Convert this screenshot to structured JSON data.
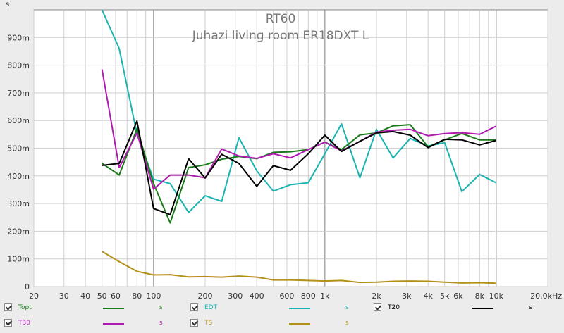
{
  "chart_data": {
    "type": "line",
    "title": "RT60",
    "subtitle": "Juhazi living room ER18DXT L",
    "ylabel": "s",
    "xlabel": "",
    "x_scale": "log",
    "xlim": [
      20,
      20000
    ],
    "ylim": [
      0,
      1.0
    ],
    "grid": true,
    "x_ticks": [
      {
        "v": 20,
        "label": "20"
      },
      {
        "v": 30,
        "label": "30"
      },
      {
        "v": 40,
        "label": "40"
      },
      {
        "v": 50,
        "label": "50"
      },
      {
        "v": 60,
        "label": "60"
      },
      {
        "v": 80,
        "label": "80"
      },
      {
        "v": 100,
        "label": "100"
      },
      {
        "v": 200,
        "label": "200"
      },
      {
        "v": 300,
        "label": "300"
      },
      {
        "v": 400,
        "label": "400"
      },
      {
        "v": 600,
        "label": "600"
      },
      {
        "v": 800,
        "label": "800"
      },
      {
        "v": 1000,
        "label": "1k"
      },
      {
        "v": 2000,
        "label": "2k"
      },
      {
        "v": 3000,
        "label": "3k"
      },
      {
        "v": 4000,
        "label": "4k"
      },
      {
        "v": 5000,
        "label": "5k"
      },
      {
        "v": 6000,
        "label": "6k"
      },
      {
        "v": 8000,
        "label": "8k"
      },
      {
        "v": 10000,
        "label": "10k"
      },
      {
        "v": 20000,
        "label": "20,0kHz"
      }
    ],
    "y_ticks": [
      {
        "v": 0,
        "label": "0"
      },
      {
        "v": 0.1,
        "label": "100m"
      },
      {
        "v": 0.2,
        "label": "200m"
      },
      {
        "v": 0.3,
        "label": "300m"
      },
      {
        "v": 0.4,
        "label": "400m"
      },
      {
        "v": 0.5,
        "label": "500m"
      },
      {
        "v": 0.6,
        "label": "600m"
      },
      {
        "v": 0.7,
        "label": "700m"
      },
      {
        "v": 0.8,
        "label": "800m"
      },
      {
        "v": 0.9,
        "label": "900m"
      }
    ],
    "x": [
      50,
      63,
      80,
      100,
      125,
      160,
      200,
      250,
      315,
      400,
      500,
      630,
      800,
      1000,
      1250,
      1600,
      2000,
      2500,
      3150,
      4000,
      5000,
      6300,
      8000,
      10000
    ],
    "series": [
      {
        "name": "Topt",
        "color": "#1a7a1a",
        "values": [
          0.445,
          0.403,
          0.57,
          0.372,
          0.23,
          0.43,
          0.44,
          0.46,
          0.47,
          0.462,
          0.485,
          0.487,
          0.495,
          0.522,
          0.495,
          0.548,
          0.555,
          0.581,
          0.585,
          0.505,
          0.53,
          0.553,
          0.53,
          0.53
        ]
      },
      {
        "name": "EDT",
        "color": "#1ab3b3",
        "values": [
          1.0,
          0.86,
          0.55,
          0.388,
          0.372,
          0.268,
          0.328,
          0.308,
          0.538,
          0.418,
          0.345,
          0.368,
          0.375,
          0.48,
          0.588,
          0.393,
          0.568,
          0.465,
          0.535,
          0.508,
          0.52,
          0.343,
          0.405,
          0.375
        ]
      },
      {
        "name": "T20",
        "color": "#000000",
        "values": [
          0.438,
          0.445,
          0.598,
          0.282,
          0.26,
          0.462,
          0.392,
          0.478,
          0.445,
          0.362,
          0.437,
          0.42,
          0.48,
          0.547,
          0.488,
          0.525,
          0.555,
          0.56,
          0.547,
          0.502,
          0.532,
          0.53,
          0.512,
          0.528
        ]
      },
      {
        "name": "T30",
        "color": "#b01ab0",
        "values": [
          0.785,
          0.43,
          0.555,
          0.352,
          0.403,
          0.403,
          0.393,
          0.497,
          0.472,
          0.463,
          0.48,
          0.465,
          0.495,
          0.522,
          0.49,
          0.525,
          0.558,
          0.565,
          0.568,
          0.545,
          0.553,
          0.556,
          0.55,
          0.58
        ]
      },
      {
        "name": "TS",
        "color": "#b39119",
        "values": [
          0.127,
          0.09,
          0.055,
          0.042,
          0.043,
          0.035,
          0.036,
          0.034,
          0.038,
          0.034,
          0.024,
          0.024,
          0.022,
          0.02,
          0.022,
          0.015,
          0.016,
          0.019,
          0.02,
          0.019,
          0.016,
          0.013,
          0.014,
          0.012
        ]
      }
    ]
  },
  "legend": {
    "items": [
      {
        "name": "Topt",
        "color": "#1a7a1a",
        "unit": "s",
        "text_color": "#1a7a1a"
      },
      {
        "name": "EDT",
        "color": "#1ab3b3",
        "unit": "s",
        "text_color": "#1ab3b3"
      },
      {
        "name": "T20",
        "color": "#000000",
        "unit": "s",
        "text_color": "#000000"
      },
      {
        "name": "T30",
        "color": "#b01ab0",
        "unit": "s",
        "text_color": "#b01ab0"
      },
      {
        "name": "TS",
        "color": "#b39119",
        "unit": "s",
        "text_color": "#b39119"
      }
    ]
  }
}
